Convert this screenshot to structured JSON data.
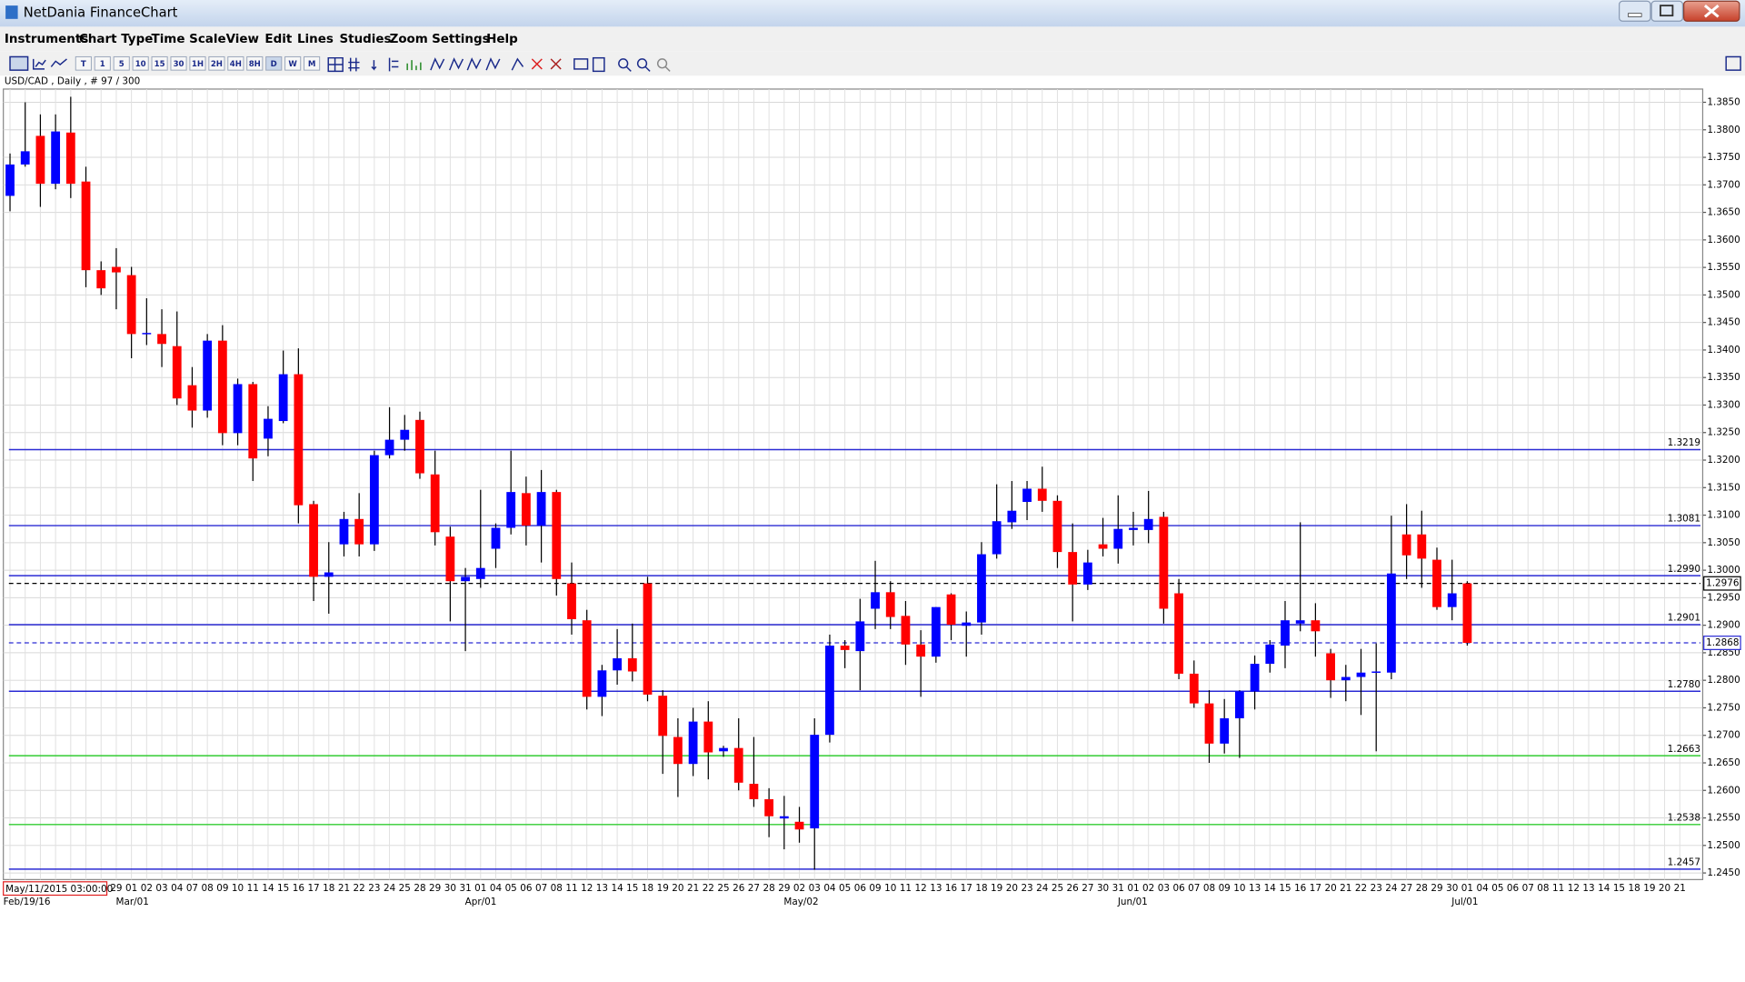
{
  "window": {
    "title": "NetDania FinanceChart"
  },
  "menu": [
    "Instruments",
    "Chart Type",
    "Time Scale",
    "View",
    "Edit",
    "Lines",
    "Studies",
    "Zoom",
    "Settings",
    "Help"
  ],
  "toolbar": [
    "T",
    "1",
    "5",
    "10",
    "15",
    "30",
    "1H",
    "2H",
    "4H",
    "8H",
    "D",
    "W",
    "M"
  ],
  "chart_data": {
    "type": "candlestick",
    "info": "USD/CAD , Daily , # 97 / 300",
    "cursor_label": "May/11/2015 03:00:00",
    "categories": [
      null,
      null,
      null,
      null,
      null,
      null,
      null,
      "29",
      "01",
      "02",
      "03",
      "04",
      "07",
      "08",
      "09",
      "10",
      "11",
      "14",
      "15",
      "16",
      "17",
      "18",
      "21",
      "22",
      "23",
      "24",
      "25",
      "28",
      "29",
      "30",
      "31",
      "01",
      "04",
      "05",
      "06",
      "07",
      "08",
      "11",
      "12",
      "13",
      "14",
      "15",
      "18",
      "19",
      "20",
      "21",
      "22",
      "25",
      "26",
      "27",
      "28",
      "29",
      "02",
      "03",
      "04",
      "05",
      "06",
      "09",
      "10",
      "11",
      "12",
      "13",
      "16",
      "17",
      "18",
      "19",
      "20",
      "23",
      "24",
      "25",
      "26",
      "27",
      "30",
      "31",
      "01",
      "02",
      "03",
      "06",
      "07",
      "08",
      "09",
      "10",
      "13",
      "14",
      "15",
      "16",
      "17",
      "20",
      "21",
      "22",
      "23",
      "24",
      "27",
      "28",
      "29",
      "30",
      "01",
      "04",
      "05",
      "06",
      "07",
      "08",
      "11",
      "12",
      "13",
      "14",
      "15",
      "18",
      "19",
      "20",
      "21"
    ],
    "period_labels": [
      {
        "at": 0,
        "label": "Feb/19/16"
      },
      {
        "at": 8,
        "label": "Mar/01"
      },
      {
        "at": 31,
        "label": "Apr/01"
      },
      {
        "at": 52,
        "label": "May/02"
      },
      {
        "at": 74,
        "label": "Jun/01"
      },
      {
        "at": 96,
        "label": "Jul/01"
      }
    ],
    "open": [
      1.368,
      1.3737,
      1.3789,
      1.3702,
      1.3795,
      1.3706,
      1.3545,
      1.3551,
      1.3536,
      1.3429,
      1.3429,
      1.3407,
      1.3336,
      1.329,
      1.3417,
      1.3249,
      1.3338,
      1.3239,
      1.3271,
      1.3356,
      1.312,
      1.2988,
      1.3047,
      1.3093,
      1.3047,
      1.3209,
      1.3237,
      1.3273,
      1.3174,
      1.3061,
      1.298,
      1.2984,
      1.3039,
      1.3077,
      1.314,
      1.3081,
      1.3142,
      1.2976,
      1.2909,
      1.277,
      1.2818,
      1.284,
      1.2976,
      1.2772,
      1.2697,
      1.2648,
      1.2725,
      1.2671,
      1.2677,
      1.2612,
      1.2584,
      1.2549,
      1.2543,
      1.2531,
      1.2701,
      1.2863,
      1.2853,
      1.293,
      1.296,
      1.2917,
      1.2865,
      1.2843,
      1.2956,
      1.2899,
      1.2905,
      1.3029,
      1.3087,
      1.3124,
      1.3148,
      1.3126,
      1.3033,
      1.2974,
      1.3047,
      1.3039,
      1.3073,
      1.3073,
      1.3097,
      1.2958,
      1.2812,
      1.2758,
      1.2685,
      1.2731,
      1.278,
      1.283,
      1.2863,
      1.2903,
      1.2909,
      1.2849,
      1.28,
      1.2806,
      1.2814,
      1.2814,
      1.3065,
      1.3065,
      1.3019,
      1.2933,
      1.2976,
      null,
      null,
      null,
      null,
      null,
      null,
      null,
      null,
      null,
      null,
      null,
      null,
      null,
      null
    ],
    "high": [
      1.3757,
      1.385,
      1.3828,
      1.3828,
      1.386,
      1.3733,
      1.3561,
      1.3585,
      1.3551,
      1.3494,
      1.3474,
      1.347,
      1.3369,
      1.3429,
      1.3445,
      1.3348,
      1.3342,
      1.3298,
      1.3399,
      1.3403,
      1.3126,
      1.3051,
      1.3106,
      1.314,
      1.3217,
      1.3296,
      1.3282,
      1.3288,
      1.3217,
      1.3079,
      1.3004,
      1.3146,
      1.3085,
      1.3217,
      1.317,
      1.3182,
      1.3146,
      1.3014,
      1.2928,
      1.2828,
      1.2893,
      1.2903,
      1.2988,
      1.2782,
      1.2731,
      1.275,
      1.2762,
      1.2681,
      1.2731,
      1.2697,
      1.2604,
      1.259,
      1.257,
      1.2731,
      1.2883,
      1.2873,
      1.2948,
      1.3017,
      1.298,
      1.2944,
      1.2891,
      1.2933,
      1.2958,
      1.2925,
      1.3051,
      1.3156,
      1.3162,
      1.3162,
      1.3188,
      1.3136,
      1.3085,
      1.3037,
      1.3095,
      1.3136,
      1.3106,
      1.3144,
      1.3106,
      1.2984,
      1.2836,
      1.2782,
      1.2766,
      1.2782,
      1.2845,
      1.2873,
      1.2944,
      1.3087,
      1.294,
      1.2857,
      1.2828,
      1.2857,
      1.2867,
      1.3099,
      1.312,
      1.3108,
      1.3041,
      1.3019,
      1.298,
      null,
      null,
      null,
      null,
      null,
      null,
      null,
      null,
      null,
      null,
      null,
      null,
      null,
      null
    ],
    "low": [
      1.3652,
      1.3733,
      1.366,
      1.3692,
      1.3676,
      1.3514,
      1.35,
      1.3474,
      1.3385,
      1.3409,
      1.3369,
      1.33,
      1.3259,
      1.3277,
      1.3227,
      1.3227,
      1.3162,
      1.3207,
      1.3267,
      1.3085,
      1.2944,
      1.2921,
      1.3025,
      1.3025,
      1.3035,
      1.3203,
      1.3217,
      1.3166,
      1.3045,
      1.2907,
      1.2853,
      1.2968,
      1.3004,
      1.3065,
      1.3045,
      1.3014,
      1.2954,
      1.2883,
      1.2747,
      1.2735,
      1.2792,
      1.2798,
      1.2762,
      1.263,
      1.2588,
      1.2626,
      1.262,
      1.2661,
      1.26,
      1.257,
      1.2515,
      1.2493,
      1.2505,
      1.2456,
      1.2687,
      1.2822,
      1.2782,
      1.2893,
      1.2893,
      1.2828,
      1.277,
      1.2832,
      1.2873,
      1.2843,
      1.2883,
      1.3021,
      1.3075,
      1.3091,
      1.3106,
      1.3004,
      1.2907,
      1.2964,
      1.3025,
      1.3012,
      1.3045,
      1.3049,
      1.2903,
      1.2802,
      1.275,
      1.265,
      1.2667,
      1.2659,
      1.2747,
      1.2814,
      1.2822,
      1.2889,
      1.2843,
      1.2768,
      1.2762,
      1.2737,
      1.2671,
      1.2802,
      1.2984,
      1.2968,
      1.2928,
      1.2909,
      1.2863,
      null,
      null,
      null,
      null,
      null,
      null,
      null,
      null,
      null,
      null,
      null,
      null,
      null,
      null
    ],
    "close": [
      1.3737,
      1.3761,
      1.3702,
      1.3797,
      1.3702,
      1.3545,
      1.3512,
      1.3541,
      1.3429,
      1.3431,
      1.3411,
      1.3312,
      1.329,
      1.3417,
      1.3249,
      1.3338,
      1.3203,
      1.3275,
      1.3356,
      1.3118,
      1.2988,
      1.2996,
      1.3093,
      1.3047,
      1.3209,
      1.3237,
      1.3255,
      1.3176,
      1.3069,
      1.298,
      1.2988,
      1.3004,
      1.3077,
      1.3142,
      1.3081,
      1.3142,
      1.2984,
      1.2911,
      1.277,
      1.2818,
      1.284,
      1.2816,
      1.2774,
      1.2699,
      1.2648,
      1.2725,
      1.2669,
      1.2677,
      1.2614,
      1.2584,
      1.2553,
      1.2553,
      1.2529,
      1.2701,
      1.2863,
      1.2855,
      1.2907,
      1.296,
      1.2915,
      1.2865,
      1.2843,
      1.2933,
      1.2901,
      1.2905,
      1.3029,
      1.3089,
      1.3108,
      1.3148,
      1.3126,
      1.3033,
      1.2974,
      1.3014,
      1.3039,
      1.3075,
      1.3077,
      1.3093,
      1.293,
      1.2812,
      1.2758,
      1.2685,
      1.2731,
      1.278,
      1.283,
      1.2865,
      1.2909,
      1.2909,
      1.2889,
      1.28,
      1.2806,
      1.2814,
      1.2816,
      1.2994,
      1.3027,
      1.3021,
      1.2933,
      1.2958,
      1.2868,
      null,
      null,
      null,
      null,
      null,
      null,
      null,
      null,
      null,
      null,
      null,
      null,
      null,
      null
    ],
    "up_color": "#0000ff",
    "down_color": "#ff0000",
    "ylim": [
      1.2438,
      1.3874
    ],
    "yticks": [
      {
        "value": 1.245,
        "label": "1.2450"
      },
      {
        "value": 1.25,
        "label": "1.2500"
      },
      {
        "value": 1.255,
        "label": "1.2550"
      },
      {
        "value": 1.26,
        "label": "1.2600"
      },
      {
        "value": 1.265,
        "label": "1.2650"
      },
      {
        "value": 1.27,
        "label": "1.2700"
      },
      {
        "value": 1.275,
        "label": "1.2750"
      },
      {
        "value": 1.28,
        "label": "1.2800"
      },
      {
        "value": 1.285,
        "label": "1.2850"
      },
      {
        "value": 1.29,
        "label": "1.2900"
      },
      {
        "value": 1.295,
        "label": "1.2950"
      },
      {
        "value": 1.3,
        "label": "1.3000"
      },
      {
        "value": 1.305,
        "label": "1.3050"
      },
      {
        "value": 1.31,
        "label": "1.3100"
      },
      {
        "value": 1.315,
        "label": "1.3150"
      },
      {
        "value": 1.32,
        "label": "1.3200"
      },
      {
        "value": 1.325,
        "label": "1.3250"
      },
      {
        "value": 1.33,
        "label": "1.3300"
      },
      {
        "value": 1.335,
        "label": "1.3350"
      },
      {
        "value": 1.34,
        "label": "1.3400"
      },
      {
        "value": 1.345,
        "label": "1.3450"
      },
      {
        "value": 1.35,
        "label": "1.3500"
      },
      {
        "value": 1.355,
        "label": "1.3550"
      },
      {
        "value": 1.36,
        "label": "1.3600"
      },
      {
        "value": 1.365,
        "label": "1.3650"
      },
      {
        "value": 1.37,
        "label": "1.3700"
      },
      {
        "value": 1.375,
        "label": "1.3750"
      },
      {
        "value": 1.38,
        "label": "1.3800"
      },
      {
        "value": 1.385,
        "label": "1.3850"
      }
    ],
    "grid": true,
    "levels": [
      {
        "value": 1.3219,
        "color": "#2b2bd4"
      },
      {
        "value": 1.3081,
        "color": "#2b2bd4"
      },
      {
        "value": 1.299,
        "label": "1.2990",
        "color": "#2b2bd4"
      },
      {
        "value": 1.2901,
        "color": "#2b2bd4"
      },
      {
        "value": 1.278,
        "label": "1.2780",
        "color": "#2b2bd4"
      },
      {
        "value": 1.2663,
        "color": "#33cc33"
      },
      {
        "value": 1.2538,
        "color": "#33cc33"
      },
      {
        "value": 1.2457,
        "color": "#2b2bd4"
      }
    ],
    "price_markers": [
      {
        "value": 1.2976,
        "color": "#000000",
        "dashed": true
      },
      {
        "value": 1.2868,
        "color": "#2b2bd4",
        "dashed": true
      }
    ]
  }
}
